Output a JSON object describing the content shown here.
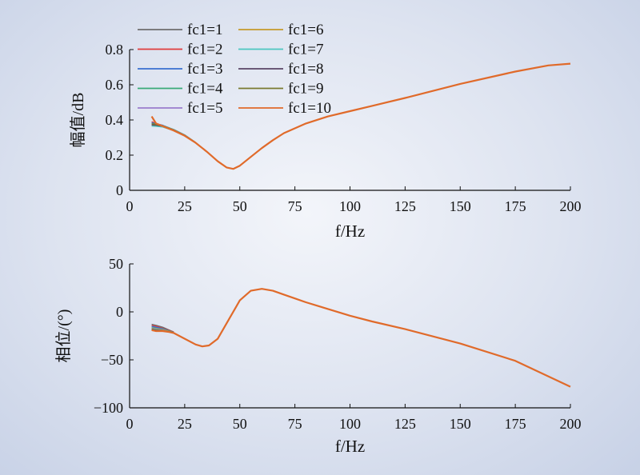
{
  "chart_data": [
    {
      "type": "line",
      "xlabel": "f/Hz",
      "ylabel": "幅值/dB",
      "xlim": [
        0,
        200
      ],
      "ylim": [
        0,
        0.8
      ],
      "xticks": [
        "0",
        "25",
        "50",
        "75",
        "100",
        "125",
        "150",
        "175",
        "200"
      ],
      "yticks": [
        "0",
        "0.2",
        "0.4",
        "0.6",
        "0.8"
      ],
      "legend_position": "top-left",
      "series": [
        {
          "name": "fc1=1",
          "color": "#6e6e6e",
          "x": [
            10,
            12,
            15,
            20,
            25,
            30
          ],
          "y": [
            0.38,
            0.375,
            0.365,
            0.34,
            0.31,
            0.27
          ]
        },
        {
          "name": "fc1=2",
          "color": "#e03c3c",
          "x": [
            10,
            12,
            15,
            20,
            25,
            30
          ],
          "y": [
            0.39,
            0.38,
            0.368,
            0.342,
            0.312,
            0.271
          ]
        },
        {
          "name": "fc1=3",
          "color": "#3a6fd0",
          "x": [
            10,
            12,
            15,
            20,
            25,
            30
          ],
          "y": [
            0.385,
            0.378,
            0.37,
            0.345,
            0.314,
            0.272
          ]
        },
        {
          "name": "fc1=4",
          "color": "#3aaa78",
          "x": [
            10,
            12,
            15,
            20,
            25,
            30
          ],
          "y": [
            0.38,
            0.376,
            0.368,
            0.346,
            0.315,
            0.272
          ]
        },
        {
          "name": "fc1=5",
          "color": "#9a7ccc",
          "x": [
            10,
            12,
            15,
            20,
            25,
            30
          ],
          "y": [
            0.375,
            0.372,
            0.365,
            0.344,
            0.313,
            0.271
          ]
        },
        {
          "name": "fc1=6",
          "color": "#c59a2a",
          "x": [
            10,
            12,
            15,
            20,
            25,
            30
          ],
          "y": [
            0.37,
            0.368,
            0.362,
            0.341,
            0.311,
            0.27
          ]
        },
        {
          "name": "fc1=7",
          "color": "#4cc6c0",
          "x": [
            10,
            12,
            15,
            20,
            25,
            30
          ],
          "y": [
            0.365,
            0.364,
            0.36,
            0.34,
            0.31,
            0.27
          ]
        },
        {
          "name": "fc1=8",
          "color": "#5a4566",
          "x": [
            10,
            12,
            15,
            20,
            25,
            30
          ],
          "y": [
            0.372,
            0.37,
            0.364,
            0.342,
            0.311,
            0.27
          ]
        },
        {
          "name": "fc1=9",
          "color": "#7a7a30",
          "x": [
            10,
            12,
            15,
            20,
            25,
            30
          ],
          "y": [
            0.378,
            0.374,
            0.366,
            0.343,
            0.312,
            0.271
          ]
        },
        {
          "name": "fc1=10",
          "color": "#e06a2a",
          "x": [
            10,
            11,
            12,
            15,
            20,
            25,
            30,
            35,
            40,
            44,
            47,
            50,
            55,
            60,
            65,
            70,
            80,
            90,
            100,
            110,
            125,
            150,
            175,
            190,
            200
          ],
          "y": [
            0.42,
            0.4,
            0.38,
            0.365,
            0.34,
            0.31,
            0.27,
            0.22,
            0.165,
            0.13,
            0.122,
            0.14,
            0.19,
            0.24,
            0.285,
            0.325,
            0.38,
            0.42,
            0.45,
            0.48,
            0.525,
            0.605,
            0.675,
            0.71,
            0.72
          ]
        }
      ]
    },
    {
      "type": "line",
      "xlabel": "f/Hz",
      "ylabel": "相位/(°)",
      "xlim": [
        0,
        200
      ],
      "ylim": [
        -100,
        50
      ],
      "xticks": [
        "0",
        "25",
        "50",
        "75",
        "100",
        "125",
        "150",
        "175",
        "200"
      ],
      "yticks": [
        "50",
        "0",
        "−50",
        "−100"
      ],
      "series": [
        {
          "name": "fc1=1",
          "color": "#6e6e6e",
          "x": [
            10,
            12,
            15,
            18,
            20
          ],
          "y": [
            -13,
            -14,
            -16,
            -19,
            -21
          ]
        },
        {
          "name": "fc1=2",
          "color": "#e03c3c",
          "x": [
            10,
            12,
            15,
            18,
            20
          ],
          "y": [
            -14,
            -15,
            -17,
            -19.5,
            -21
          ]
        },
        {
          "name": "fc1=3",
          "color": "#3a6fd0",
          "x": [
            10,
            12,
            15,
            18,
            20
          ],
          "y": [
            -15,
            -16,
            -17.5,
            -20,
            -21.5
          ]
        },
        {
          "name": "fc1=4",
          "color": "#3aaa78",
          "x": [
            10,
            12,
            15,
            18,
            20
          ],
          "y": [
            -16,
            -17,
            -18,
            -20,
            -21.5
          ]
        },
        {
          "name": "fc1=5",
          "color": "#9a7ccc",
          "x": [
            10,
            12,
            15,
            18,
            20
          ],
          "y": [
            -16.5,
            -17.5,
            -18.5,
            -20.5,
            -22
          ]
        },
        {
          "name": "fc1=6",
          "color": "#c59a2a",
          "x": [
            10,
            12,
            15,
            18,
            20
          ],
          "y": [
            -17,
            -18,
            -19,
            -20.5,
            -22
          ]
        },
        {
          "name": "fc1=7",
          "color": "#4cc6c0",
          "x": [
            10,
            12,
            15,
            18,
            20
          ],
          "y": [
            -17.5,
            -18.5,
            -19.5,
            -21,
            -22
          ]
        },
        {
          "name": "fc1=8",
          "color": "#5a4566",
          "x": [
            10,
            12,
            15,
            18,
            20
          ],
          "y": [
            -18,
            -19,
            -19.5,
            -21,
            -22
          ]
        },
        {
          "name": "fc1=9",
          "color": "#7a7a30",
          "x": [
            10,
            12,
            15,
            18,
            20
          ],
          "y": [
            -18.5,
            -19.5,
            -20,
            -21,
            -22
          ]
        },
        {
          "name": "fc1=10",
          "color": "#e06a2a",
          "x": [
            10,
            12,
            15,
            18,
            20,
            25,
            30,
            33,
            36,
            40,
            45,
            50,
            55,
            60,
            65,
            70,
            75,
            80,
            90,
            100,
            110,
            125,
            150,
            175,
            200
          ],
          "y": [
            -19,
            -20,
            -20,
            -21,
            -22,
            -28,
            -34,
            -36,
            -35,
            -28,
            -8,
            12,
            22,
            24,
            22,
            18,
            14,
            10,
            3,
            -4,
            -10,
            -18,
            -33,
            -51,
            -78
          ]
        }
      ]
    }
  ]
}
